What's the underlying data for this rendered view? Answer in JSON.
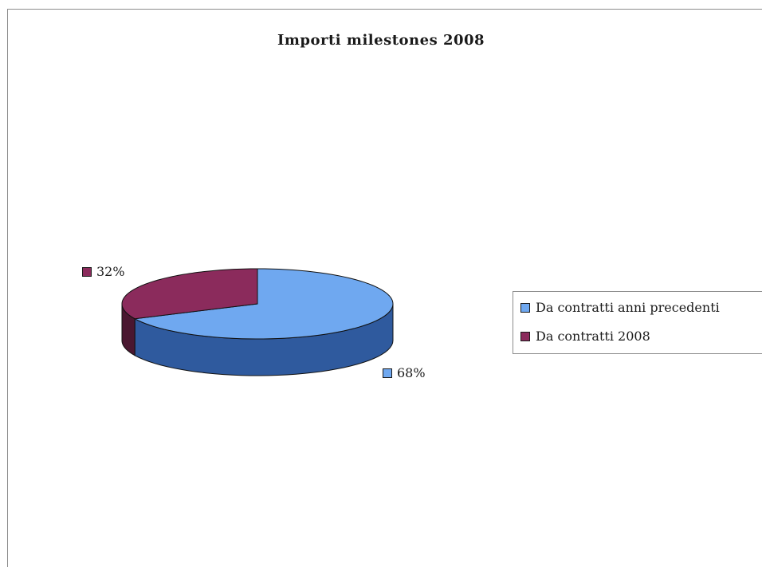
{
  "chart_data": {
    "type": "pie",
    "title": "Importi milestones 2008",
    "categories": [
      "Da contratti anni precedenti",
      "Da contratti 2008"
    ],
    "values": [
      68,
      32
    ],
    "value_labels": [
      "68%",
      "32%"
    ],
    "colors": [
      "#6fa8f0",
      "#8b2b5c"
    ],
    "side_colors": [
      "#2f5a9e",
      "#4a1730"
    ],
    "legend_position": "right",
    "three_d": true
  }
}
